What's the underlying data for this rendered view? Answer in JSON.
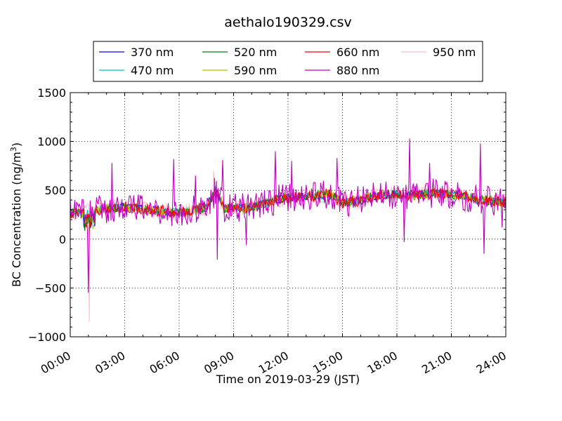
{
  "chart_data": {
    "type": "line",
    "title": "aethalo190329.csv",
    "xlabel": "Time on 2019-03-29 (JST)",
    "ylabel_main": "BC Concentration (ng/m",
    "ylabel_sup": "3",
    "ylabel_close": ")",
    "xlim": [
      0,
      24
    ],
    "ylim": [
      -1000,
      1500
    ],
    "x_ticks": [
      {
        "value": 0,
        "label": "00:00"
      },
      {
        "value": 3,
        "label": "03:00"
      },
      {
        "value": 6,
        "label": "06:00"
      },
      {
        "value": 9,
        "label": "09:00"
      },
      {
        "value": 12,
        "label": "12:00"
      },
      {
        "value": 15,
        "label": "15:00"
      },
      {
        "value": 18,
        "label": "18:00"
      },
      {
        "value": 21,
        "label": "21:00"
      },
      {
        "value": 24,
        "label": "24:00"
      }
    ],
    "y_ticks": [
      {
        "value": 1500,
        "label": "1500"
      },
      {
        "value": 1000,
        "label": "1000"
      },
      {
        "value": 500,
        "label": "500"
      },
      {
        "value": 0,
        "label": "0"
      },
      {
        "value": -500,
        "label": "−500"
      },
      {
        "value": -1000,
        "label": "−1000"
      }
    ],
    "grid": true,
    "legend_placement": "top",
    "series": [
      {
        "name": "370 nm",
        "color": "#0000ff",
        "noise": 40,
        "spikes": []
      },
      {
        "name": "470 nm",
        "color": "#00bfbf",
        "noise": 45,
        "spikes": []
      },
      {
        "name": "520 nm",
        "color": "#008000",
        "noise": 50,
        "spikes": []
      },
      {
        "name": "590 nm",
        "color": "#bfbf00",
        "noise": 55,
        "spikes": []
      },
      {
        "name": "660 nm",
        "color": "#ff0000",
        "noise": 60,
        "spikes": []
      },
      {
        "name": "880 nm",
        "color": "#bf00bf",
        "noise": 150,
        "spikes": [
          {
            "x": 1.0,
            "y": -550
          },
          {
            "x": 2.3,
            "y": 780
          },
          {
            "x": 5.7,
            "y": 820
          },
          {
            "x": 6.9,
            "y": 650
          },
          {
            "x": 8.1,
            "y": -210
          },
          {
            "x": 8.4,
            "y": 810
          },
          {
            "x": 11.3,
            "y": 900
          },
          {
            "x": 12.2,
            "y": 800
          },
          {
            "x": 14.7,
            "y": 830
          },
          {
            "x": 18.7,
            "y": 1030
          },
          {
            "x": 18.4,
            "y": -30
          },
          {
            "x": 19.8,
            "y": 780
          },
          {
            "x": 22.6,
            "y": 980
          },
          {
            "x": 22.8,
            "y": -150
          },
          {
            "x": 23.8,
            "y": 120
          },
          {
            "x": 9.7,
            "y": -60
          }
        ]
      },
      {
        "name": "950 nm",
        "color": "#ffc0cb",
        "noise": 90,
        "spikes": [
          {
            "x": 1.05,
            "y": -850
          },
          {
            "x": 7.9,
            "y": 700
          }
        ]
      }
    ],
    "base_level": [
      {
        "x": 0.0,
        "y": 260
      },
      {
        "x": 0.8,
        "y": 280
      },
      {
        "x": 1.5,
        "y": 300
      },
      {
        "x": 3.0,
        "y": 330
      },
      {
        "x": 4.5,
        "y": 300
      },
      {
        "x": 6.0,
        "y": 270
      },
      {
        "x": 7.5,
        "y": 320
      },
      {
        "x": 8.0,
        "y": 500
      },
      {
        "x": 8.5,
        "y": 310
      },
      {
        "x": 10.0,
        "y": 330
      },
      {
        "x": 11.5,
        "y": 410
      },
      {
        "x": 12.5,
        "y": 430
      },
      {
        "x": 13.5,
        "y": 440
      },
      {
        "x": 14.3,
        "y": 460
      },
      {
        "x": 15.0,
        "y": 370
      },
      {
        "x": 16.0,
        "y": 400
      },
      {
        "x": 17.0,
        "y": 450
      },
      {
        "x": 17.7,
        "y": 460
      },
      {
        "x": 18.5,
        "y": 450
      },
      {
        "x": 20.0,
        "y": 470
      },
      {
        "x": 21.5,
        "y": 450
      },
      {
        "x": 22.5,
        "y": 400
      },
      {
        "x": 24.0,
        "y": 380
      }
    ]
  }
}
